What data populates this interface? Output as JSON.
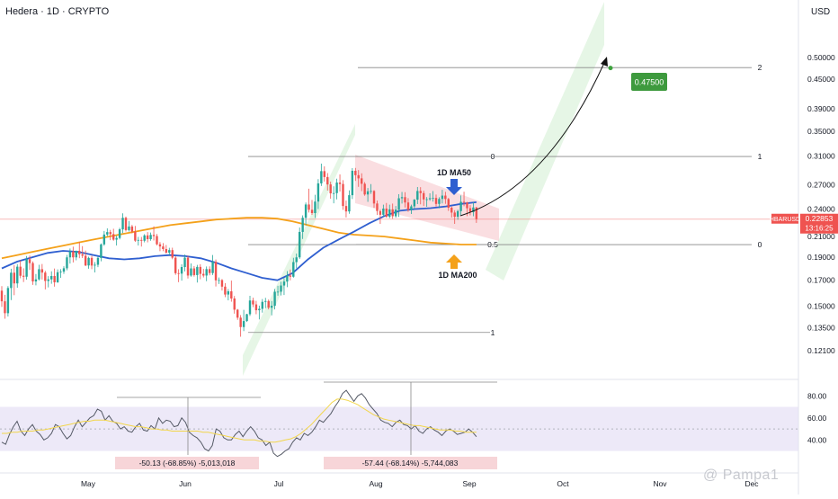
{
  "header": {
    "title": "Hedera · 1D · CRYPTO",
    "currency": "USD"
  },
  "watermark": "@ Pampa1",
  "colors": {
    "ma50": "#2f5fd0",
    "ma200": "#f4a11a",
    "up": "#26a69a",
    "down": "#ef5350",
    "rsi": "#555a66",
    "rsi_ma": "#f2d64b",
    "channel_green": "#8fd48f",
    "channel_red": "#f2a0a8",
    "target_badge": "#3e9a3e",
    "price_badge": "#ef5350",
    "rsi_band": "#e5e0f5"
  },
  "chart_data": {
    "type": "candlestick",
    "price_axis": {
      "ticks": [
        "0.50000",
        "0.45000",
        "0.39000",
        "0.35000",
        "0.31000",
        "0.27000",
        "0.24000",
        "0.21000",
        "0.19000",
        "0.17000",
        "0.15000",
        "0.13500",
        "0.12100"
      ],
      "ylim": [
        0.107,
        0.6
      ]
    },
    "rsi_axis": {
      "ticks": [
        "80.00",
        "60.00",
        "40.00"
      ],
      "ylim": [
        15,
        90
      ]
    },
    "x_labels": [
      "May",
      "Jun",
      "Jul",
      "Aug",
      "Sep",
      "Oct",
      "Nov",
      "Dec"
    ],
    "candles": [
      [
        0.1616,
        0.1652,
        0.1494,
        0.1535
      ],
      [
        0.1535,
        0.1584,
        0.1411,
        0.1449
      ],
      [
        0.1449,
        0.1652,
        0.1426,
        0.1637
      ],
      [
        0.1637,
        0.1797,
        0.1544,
        0.1763
      ],
      [
        0.1763,
        0.1828,
        0.1581,
        0.1674
      ],
      [
        0.1674,
        0.1838,
        0.1639,
        0.1815
      ],
      [
        0.1815,
        0.1871,
        0.1716,
        0.1737
      ],
      [
        0.1737,
        0.1801,
        0.1685,
        0.1729
      ],
      [
        0.1729,
        0.1911,
        0.1705,
        0.1882
      ],
      [
        0.1882,
        0.1916,
        0.1787,
        0.1847
      ],
      [
        0.1847,
        0.1862,
        0.1662,
        0.169
      ],
      [
        0.169,
        0.1752,
        0.1658,
        0.1707
      ],
      [
        0.1707,
        0.1832,
        0.1698,
        0.1793
      ],
      [
        0.1793,
        0.1839,
        0.1706,
        0.1764
      ],
      [
        0.1764,
        0.1779,
        0.1626,
        0.1694
      ],
      [
        0.1694,
        0.1734,
        0.1642,
        0.1707
      ],
      [
        0.1707,
        0.1775,
        0.1671,
        0.1735
      ],
      [
        0.1735,
        0.1799,
        0.1648,
        0.1683
      ],
      [
        0.1683,
        0.1791,
        0.1678,
        0.1767
      ],
      [
        0.1767,
        0.1793,
        0.172,
        0.1772
      ],
      [
        0.1772,
        0.1819,
        0.1753,
        0.1801
      ],
      [
        0.1801,
        0.1922,
        0.1784,
        0.1899
      ],
      [
        0.1899,
        0.1982,
        0.1843,
        0.1954
      ],
      [
        0.1954,
        0.2,
        0.1853,
        0.1899
      ],
      [
        0.1899,
        0.1963,
        0.1872,
        0.196
      ],
      [
        0.196,
        0.2045,
        0.1891,
        0.1928
      ],
      [
        0.1928,
        0.2005,
        0.1893,
        0.1914
      ],
      [
        0.1914,
        0.1962,
        0.182,
        0.1826
      ],
      [
        0.1826,
        0.1905,
        0.1797,
        0.1894
      ],
      [
        0.1894,
        0.1913,
        0.1793,
        0.1825
      ],
      [
        0.1825,
        0.1856,
        0.1765,
        0.1832
      ],
      [
        0.1832,
        0.1907,
        0.1811,
        0.1894
      ],
      [
        0.1894,
        0.2032,
        0.1863,
        0.2022
      ],
      [
        0.2022,
        0.2158,
        0.2008,
        0.2121
      ],
      [
        0.2121,
        0.2185,
        0.2103,
        0.2146
      ],
      [
        0.2146,
        0.2169,
        0.2064,
        0.2125
      ],
      [
        0.2125,
        0.2181,
        0.2058,
        0.2069
      ],
      [
        0.2069,
        0.2108,
        0.2011,
        0.2086
      ],
      [
        0.2086,
        0.2191,
        0.2072,
        0.2175
      ],
      [
        0.2175,
        0.2351,
        0.2136,
        0.23
      ],
      [
        0.23,
        0.2314,
        0.2152,
        0.2167
      ],
      [
        0.2167,
        0.2265,
        0.2152,
        0.2205
      ],
      [
        0.2205,
        0.2222,
        0.2134,
        0.2152
      ],
      [
        0.2152,
        0.2211,
        0.2047,
        0.2059
      ],
      [
        0.2059,
        0.2097,
        0.2011,
        0.2066
      ],
      [
        0.2066,
        0.2096,
        0.2001,
        0.2058
      ],
      [
        0.2058,
        0.2125,
        0.2042,
        0.2112
      ],
      [
        0.2112,
        0.2146,
        0.2042,
        0.2074
      ],
      [
        0.2074,
        0.2142,
        0.2058,
        0.2117
      ],
      [
        0.2117,
        0.2207,
        0.206,
        0.2105
      ],
      [
        0.2105,
        0.2127,
        0.2013,
        0.2023
      ],
      [
        0.2023,
        0.2045,
        0.1957,
        0.2002
      ],
      [
        0.2002,
        0.2035,
        0.1957,
        0.1977
      ],
      [
        0.1977,
        0.2016,
        0.1933,
        0.1943
      ],
      [
        0.1943,
        0.1989,
        0.1919,
        0.1967
      ],
      [
        0.1967,
        0.199,
        0.1882,
        0.1896
      ],
      [
        0.1896,
        0.1911,
        0.1745,
        0.1759
      ],
      [
        0.1759,
        0.1793,
        0.1684,
        0.1755
      ],
      [
        0.1755,
        0.1836,
        0.1697,
        0.1812
      ],
      [
        0.1812,
        0.1925,
        0.1774,
        0.1896
      ],
      [
        0.1896,
        0.1915,
        0.1714,
        0.1739
      ],
      [
        0.1739,
        0.1844,
        0.1729,
        0.18
      ],
      [
        0.18,
        0.182,
        0.173,
        0.1743
      ],
      [
        0.1743,
        0.1831,
        0.1681,
        0.1813
      ],
      [
        0.1813,
        0.1837,
        0.1708,
        0.1753
      ],
      [
        0.1753,
        0.1796,
        0.1723,
        0.1739
      ],
      [
        0.1739,
        0.1817,
        0.1692,
        0.1794
      ],
      [
        0.1794,
        0.1818,
        0.1741,
        0.176
      ],
      [
        0.176,
        0.1921,
        0.1743,
        0.1859
      ],
      [
        0.1859,
        0.1879,
        0.1649,
        0.1699
      ],
      [
        0.1699,
        0.1723,
        0.1669,
        0.1701
      ],
      [
        0.1701,
        0.171,
        0.1617,
        0.1648
      ],
      [
        0.1648,
        0.1676,
        0.1566,
        0.1586
      ],
      [
        0.1586,
        0.1629,
        0.1542,
        0.1611
      ],
      [
        0.1611,
        0.1697,
        0.1532,
        0.1556
      ],
      [
        0.1556,
        0.1575,
        0.1446,
        0.1474
      ],
      [
        0.1474,
        0.1479,
        0.1403,
        0.1418
      ],
      [
        0.1418,
        0.1436,
        0.1293,
        0.1355
      ],
      [
        0.1355,
        0.1473,
        0.1329,
        0.1395
      ],
      [
        0.1395,
        0.1445,
        0.1389,
        0.1442
      ],
      [
        0.1442,
        0.1576,
        0.143,
        0.1541
      ],
      [
        0.1541,
        0.1562,
        0.1492,
        0.1512
      ],
      [
        0.1512,
        0.1538,
        0.1442,
        0.147
      ],
      [
        0.147,
        0.1503,
        0.1406,
        0.148
      ],
      [
        0.148,
        0.1552,
        0.1453,
        0.1531
      ],
      [
        0.1531,
        0.1561,
        0.1485,
        0.1537
      ],
      [
        0.1537,
        0.1548,
        0.1476,
        0.1488
      ],
      [
        0.1488,
        0.1537,
        0.1434,
        0.1502
      ],
      [
        0.1502,
        0.163,
        0.1476,
        0.1608
      ],
      [
        0.1608,
        0.1655,
        0.1577,
        0.1608
      ],
      [
        0.1608,
        0.1687,
        0.1579,
        0.1657
      ],
      [
        0.1657,
        0.1717,
        0.1582,
        0.1689
      ],
      [
        0.1689,
        0.1777,
        0.1644,
        0.1739
      ],
      [
        0.1739,
        0.179,
        0.1699,
        0.1729
      ],
      [
        0.1729,
        0.1895,
        0.1721,
        0.1856
      ],
      [
        0.1856,
        0.1934,
        0.1801,
        0.1899
      ],
      [
        0.1899,
        0.2194,
        0.1885,
        0.2148
      ],
      [
        0.2148,
        0.2327,
        0.2076,
        0.23
      ],
      [
        0.23,
        0.2477,
        0.222,
        0.2453
      ],
      [
        0.2453,
        0.2648,
        0.2359,
        0.2391
      ],
      [
        0.2391,
        0.2508,
        0.2332,
        0.2353
      ],
      [
        0.2353,
        0.2571,
        0.2298,
        0.2488
      ],
      [
        0.2488,
        0.2774,
        0.24,
        0.2717
      ],
      [
        0.2717,
        0.299,
        0.2683,
        0.2883
      ],
      [
        0.2883,
        0.295,
        0.2741,
        0.2802
      ],
      [
        0.2802,
        0.2856,
        0.2624,
        0.2703
      ],
      [
        0.2703,
        0.274,
        0.2523,
        0.2589
      ],
      [
        0.2589,
        0.2679,
        0.2467,
        0.2592
      ],
      [
        0.2592,
        0.2779,
        0.2514,
        0.2728
      ],
      [
        0.2728,
        0.2838,
        0.2612,
        0.2709
      ],
      [
        0.2709,
        0.276,
        0.2391,
        0.2435
      ],
      [
        0.2435,
        0.2499,
        0.2304,
        0.2372
      ],
      [
        0.2372,
        0.2626,
        0.2345,
        0.2566
      ],
      [
        0.2566,
        0.2926,
        0.2519,
        0.2888
      ],
      [
        0.2888,
        0.2928,
        0.275,
        0.2827
      ],
      [
        0.2827,
        0.2898,
        0.2672,
        0.2784
      ],
      [
        0.2784,
        0.2853,
        0.2617,
        0.2712
      ],
      [
        0.2712,
        0.2734,
        0.2559,
        0.2575
      ],
      [
        0.2575,
        0.2656,
        0.2484,
        0.2615
      ],
      [
        0.2615,
        0.2707,
        0.2583,
        0.2619
      ],
      [
        0.2619,
        0.263,
        0.2413,
        0.2465
      ],
      [
        0.2465,
        0.25,
        0.2331,
        0.2377
      ],
      [
        0.2377,
        0.2395,
        0.2233,
        0.2334
      ],
      [
        0.2334,
        0.2451,
        0.2311,
        0.2405
      ],
      [
        0.2405,
        0.2471,
        0.23,
        0.2311
      ],
      [
        0.2311,
        0.2451,
        0.2296,
        0.2396
      ],
      [
        0.2396,
        0.2464,
        0.2289,
        0.2318
      ],
      [
        0.2318,
        0.2435,
        0.23,
        0.2393
      ],
      [
        0.2393,
        0.2578,
        0.231,
        0.2528
      ],
      [
        0.2528,
        0.2606,
        0.2464,
        0.2542
      ],
      [
        0.2542,
        0.2604,
        0.2418,
        0.2477
      ],
      [
        0.2477,
        0.253,
        0.2368,
        0.239
      ],
      [
        0.239,
        0.2451,
        0.2343,
        0.2431
      ],
      [
        0.2431,
        0.2519,
        0.2399,
        0.2511
      ],
      [
        0.2511,
        0.267,
        0.2458,
        0.2619
      ],
      [
        0.2619,
        0.2668,
        0.2455,
        0.2592
      ],
      [
        0.2592,
        0.2622,
        0.2435,
        0.2514
      ],
      [
        0.2514,
        0.2543,
        0.2426,
        0.2516
      ],
      [
        0.2516,
        0.259,
        0.2497,
        0.2529
      ],
      [
        0.2529,
        0.2618,
        0.2487,
        0.2532
      ],
      [
        0.2532,
        0.2574,
        0.2429,
        0.246
      ],
      [
        0.246,
        0.254,
        0.2409,
        0.252
      ],
      [
        0.252,
        0.2634,
        0.2466,
        0.2561
      ],
      [
        0.2561,
        0.2608,
        0.2461,
        0.2519
      ],
      [
        0.2519,
        0.2533,
        0.2378,
        0.2415
      ],
      [
        0.2415,
        0.2429,
        0.2304,
        0.2359
      ],
      [
        0.2359,
        0.2386,
        0.2233,
        0.2312
      ],
      [
        0.2312,
        0.2392,
        0.2278,
        0.2376
      ],
      [
        0.2376,
        0.2563,
        0.2329,
        0.2485
      ],
      [
        0.2485,
        0.2609,
        0.2432,
        0.2477
      ],
      [
        0.2477,
        0.2484,
        0.2319,
        0.2409
      ],
      [
        0.2409,
        0.2446,
        0.2327,
        0.2364
      ],
      [
        0.2364,
        0.2482,
        0.2318,
        0.2418
      ],
      [
        0.2418,
        0.2425,
        0.2244,
        0.2285
      ]
    ],
    "overlays": {
      "ma50": [
        0.18,
        0.186,
        0.19,
        0.194,
        0.196,
        0.195,
        0.192,
        0.189,
        0.188,
        0.189,
        0.191,
        0.192,
        0.191,
        0.189,
        0.185,
        0.18,
        0.176,
        0.172,
        0.17,
        0.176,
        0.188,
        0.199,
        0.207,
        0.215,
        0.224,
        0.232,
        0.238,
        0.24,
        0.241,
        0.243,
        0.246,
        0.248
      ],
      "ma200": [
        0.189,
        0.192,
        0.195,
        0.198,
        0.201,
        0.204,
        0.207,
        0.21,
        0.213,
        0.216,
        0.219,
        0.222,
        0.224,
        0.226,
        0.228,
        0.229,
        0.23,
        0.23,
        0.229,
        0.226,
        0.222,
        0.218,
        0.214,
        0.212,
        0.211,
        0.21,
        0.208,
        0.206,
        0.204,
        0.203,
        0.202,
        0.202
      ]
    },
    "fib_left": [
      {
        "label": "0",
        "price": 0.3095
      },
      {
        "label": "0.5",
        "price": 0.202
      },
      {
        "label": "1",
        "price": 0.132
      }
    ],
    "fib_right": [
      {
        "label": "2",
        "price": 0.476
      },
      {
        "label": "1",
        "price": 0.3095
      },
      {
        "label": "0",
        "price": 0.202
      }
    ],
    "target": {
      "label": "0.47500",
      "price": 0.475
    },
    "current": {
      "label": "HBARUSD",
      "value": "0.22853",
      "countdown": "13:16:25",
      "price": 0.2285
    },
    "annotations": {
      "ma50_label": "1D MA50",
      "ma200_label": "1D MA200"
    },
    "rsi": {
      "values": [
        38,
        36,
        45,
        52,
        57,
        48,
        44,
        50,
        54,
        48,
        45,
        40,
        42,
        46,
        54,
        52,
        46,
        41,
        44,
        52,
        58,
        52,
        56,
        60,
        62,
        68,
        66,
        58,
        62,
        57,
        55,
        50,
        52,
        48,
        47,
        52,
        55,
        49,
        48,
        53,
        50,
        60,
        55,
        58,
        57,
        52,
        53,
        60,
        56,
        47,
        44,
        42,
        38,
        32,
        30,
        35,
        50,
        48,
        42,
        40,
        40,
        45,
        48,
        43,
        48,
        52,
        48,
        42,
        40,
        35,
        38,
        28,
        25,
        27,
        30,
        32,
        38,
        42,
        40,
        46,
        44,
        47,
        52,
        58,
        56,
        60,
        64,
        70,
        75,
        82,
        85,
        80,
        75,
        80,
        82,
        78,
        72,
        68,
        64,
        58,
        56,
        55,
        52,
        56,
        58,
        54,
        53,
        50,
        53,
        48,
        46,
        50,
        52,
        49,
        47,
        44,
        48,
        50,
        48,
        45,
        46,
        47,
        50,
        47,
        43
      ],
      "ma": [
        46,
        46,
        47,
        47,
        48,
        48,
        48,
        49,
        49,
        50,
        51,
        52,
        53,
        54,
        55,
        56,
        57,
        57,
        58,
        58,
        58,
        57,
        56,
        55,
        54,
        53,
        52,
        52,
        51,
        50,
        50,
        49,
        49,
        48,
        48,
        48,
        48,
        48,
        48,
        47,
        47,
        46,
        45,
        44,
        43,
        42,
        41,
        40,
        40,
        40,
        39,
        39,
        38,
        38,
        39,
        40,
        41,
        43,
        46,
        50,
        54,
        59,
        64,
        69,
        74,
        77,
        77,
        76,
        74,
        72,
        69,
        66,
        63,
        61,
        59,
        58,
        57,
        56,
        55,
        54,
        53,
        53,
        52,
        51,
        50,
        49,
        49,
        49,
        48,
        48,
        47,
        47,
        47
      ]
    },
    "measures": [
      {
        "label": "-50.13 (-68.85%) -5,013,018"
      },
      {
        "label": "-57.44 (-68.14%) -5,744,083"
      }
    ]
  }
}
